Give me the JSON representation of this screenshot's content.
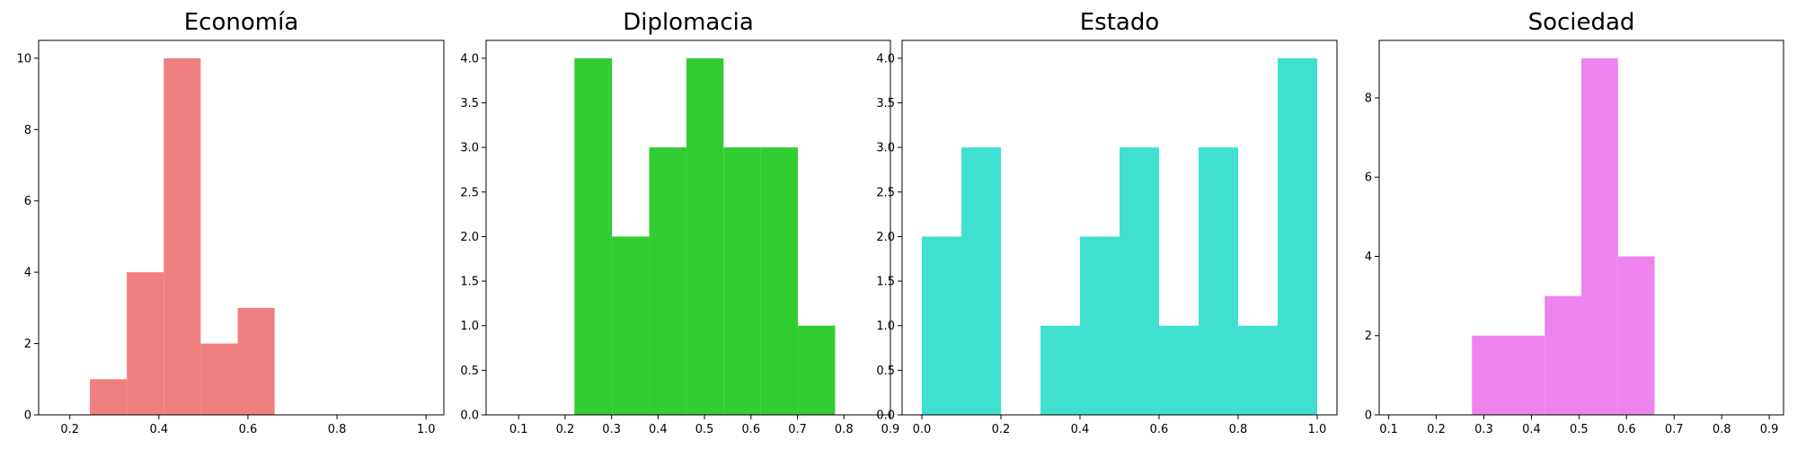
{
  "chart_data": [
    {
      "type": "bar",
      "title": "Economía",
      "color": "#F08080",
      "xlim": [
        0.13,
        1.04
      ],
      "ylim": [
        0,
        10.5
      ],
      "xticks": [
        0.2,
        0.4,
        0.6,
        0.8,
        1.0
      ],
      "xtick_labels": [
        "0.2",
        "0.4",
        "0.6",
        "0.8",
        "1.0"
      ],
      "yticks": [
        0,
        2,
        4,
        6,
        8,
        10
      ],
      "ytick_labels": [
        "0",
        "2",
        "4",
        "6",
        "8",
        "10"
      ],
      "bins": [
        [
          0.245,
          0.328
        ],
        [
          0.328,
          0.411
        ],
        [
          0.411,
          0.494
        ],
        [
          0.494,
          0.577
        ],
        [
          0.577,
          0.66
        ]
      ],
      "values": [
        1,
        4,
        10,
        2,
        3
      ]
    },
    {
      "type": "bar",
      "title": "Diplomacia",
      "color": "#32CD32",
      "xlim": [
        0.03,
        0.9
      ],
      "ylim": [
        0,
        4.2
      ],
      "xticks": [
        0.1,
        0.2,
        0.3,
        0.4,
        0.5,
        0.6,
        0.7,
        0.8,
        0.9
      ],
      "xtick_labels": [
        "0.1",
        "0.2",
        "0.3",
        "0.4",
        "0.5",
        "0.6",
        "0.7",
        "0.8",
        "0.9"
      ],
      "yticks": [
        0,
        0.5,
        1.0,
        1.5,
        2.0,
        2.5,
        3.0,
        3.5,
        4.0
      ],
      "ytick_labels": [
        "0.0",
        "0.5",
        "1.0",
        "1.5",
        "2.0",
        "2.5",
        "3.0",
        "3.5",
        "4.0"
      ],
      "bins": [
        [
          0.22,
          0.301
        ],
        [
          0.301,
          0.381
        ],
        [
          0.381,
          0.461
        ],
        [
          0.461,
          0.541
        ],
        [
          0.541,
          0.621
        ],
        [
          0.621,
          0.701
        ],
        [
          0.701,
          0.781
        ]
      ],
      "values": [
        4,
        2,
        3,
        4,
        3,
        3,
        1
      ]
    },
    {
      "type": "bar",
      "title": "Estado",
      "color": "#40E0D0",
      "xlim": [
        -0.05,
        1.05
      ],
      "ylim": [
        0,
        4.2
      ],
      "xticks": [
        0.0,
        0.2,
        0.4,
        0.6,
        0.8,
        1.0
      ],
      "xtick_labels": [
        "0.0",
        "0.2",
        "0.4",
        "0.6",
        "0.8",
        "1.0"
      ],
      "yticks": [
        0,
        0.5,
        1.0,
        1.5,
        2.0,
        2.5,
        3.0,
        3.5,
        4.0
      ],
      "ytick_labels": [
        "0.0",
        "0.5",
        "1.0",
        "1.5",
        "2.0",
        "2.5",
        "3.0",
        "3.5",
        "4.0"
      ],
      "bins": [
        [
          0.0,
          0.1
        ],
        [
          0.1,
          0.2
        ],
        [
          0.2,
          0.3
        ],
        [
          0.3,
          0.4
        ],
        [
          0.4,
          0.5
        ],
        [
          0.5,
          0.6
        ],
        [
          0.6,
          0.7
        ],
        [
          0.7,
          0.8
        ],
        [
          0.8,
          0.9
        ],
        [
          0.9,
          1.0
        ]
      ],
      "values": [
        2,
        3,
        0,
        1,
        2,
        3,
        1,
        3,
        1,
        4
      ]
    },
    {
      "type": "bar",
      "title": "Sociedad",
      "color": "#EE82EE",
      "xlim": [
        0.08,
        0.93
      ],
      "ylim": [
        0,
        9.45
      ],
      "xticks": [
        0.1,
        0.2,
        0.3,
        0.4,
        0.5,
        0.6,
        0.7,
        0.8,
        0.9
      ],
      "xtick_labels": [
        "0.1",
        "0.2",
        "0.3",
        "0.4",
        "0.5",
        "0.6",
        "0.7",
        "0.8",
        "0.9"
      ],
      "yticks": [
        0,
        2,
        4,
        6,
        8
      ],
      "ytick_labels": [
        "0",
        "2",
        "4",
        "6",
        "8"
      ],
      "bins": [
        [
          0.275,
          0.352
        ],
        [
          0.352,
          0.428
        ],
        [
          0.428,
          0.505
        ],
        [
          0.505,
          0.582
        ],
        [
          0.582,
          0.659
        ]
      ],
      "values": [
        2,
        2,
        3,
        9,
        4
      ]
    }
  ]
}
